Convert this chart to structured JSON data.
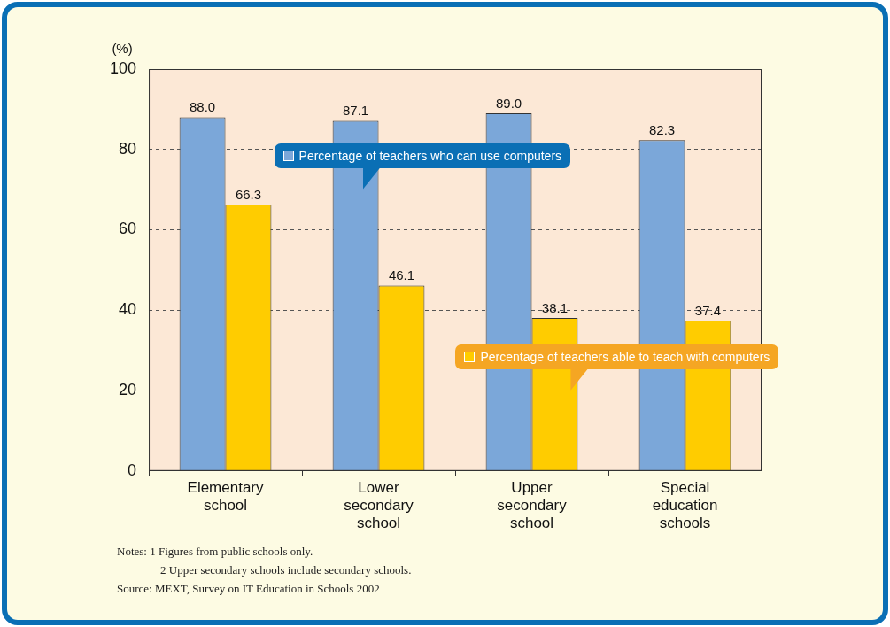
{
  "chart_data": {
    "type": "bar",
    "ylabel": "(%)",
    "categories": [
      "Elementary school",
      "Lower secondary school",
      "Upper secondary school",
      "Special education schools"
    ],
    "series": [
      {
        "name": "Percentage of teachers who can use computers",
        "color": "#7ba7d9",
        "values": [
          88.0,
          87.1,
          89.0,
          82.3
        ],
        "value_labels": [
          "88.0",
          "87.1",
          "89.0",
          "82.3"
        ]
      },
      {
        "name": "Percentage of teachers able to teach with computers",
        "color": "#ffcc00",
        "values": [
          66.3,
          46.1,
          38.1,
          37.4
        ],
        "value_labels": [
          "66.3",
          "46.1",
          "38.1",
          "37.4"
        ]
      }
    ],
    "ylim": [
      0,
      100
    ],
    "yticks": [
      0,
      20,
      40,
      60,
      80,
      100
    ],
    "grid": "y",
    "legend": "center",
    "annotations": [
      "Notes: 1 Figures from public schools only.",
      "2 Upper secondary schools include secondary schools.",
      "Source: MEXT, Survey on IT Education in Schools 2002"
    ]
  }
}
